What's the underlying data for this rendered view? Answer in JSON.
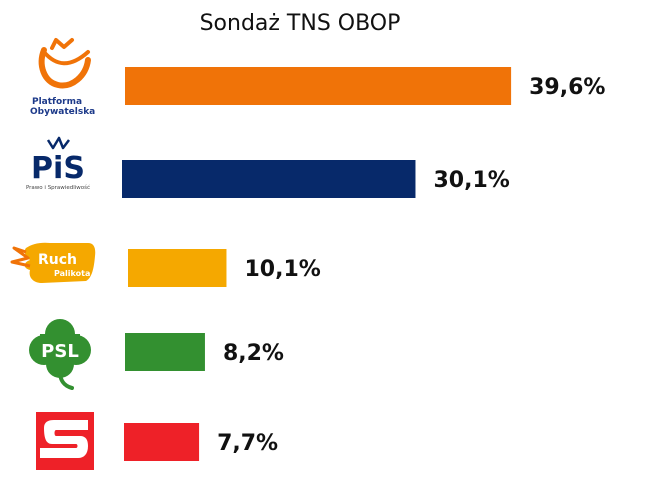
{
  "chart_data": {
    "type": "bar",
    "orientation": "horizontal",
    "title": "Sondaż TNS OBOP",
    "categories": [
      "Platforma Obywatelska",
      "PiS",
      "Ruch Palikota",
      "PSL",
      "SLD"
    ],
    "values": [
      39.6,
      30.1,
      10.1,
      8.2,
      7.7
    ],
    "value_labels": [
      "39,6%",
      "30,1%",
      "10,1%",
      "8,2%",
      "7,7%"
    ],
    "colors": [
      "#f07308",
      "#07296a",
      "#f5a800",
      "#339030",
      "#ee2128"
    ],
    "unit": "%",
    "grid": false,
    "legend": "none"
  },
  "logos": {
    "po": {
      "line1": "Platforma",
      "line2": "Obywatelska"
    },
    "pis": {
      "name": "PiS",
      "subtitle": "Prawo i Sprawiedliwość"
    },
    "ruch": {
      "line1": "Ruch",
      "line2": "Palikota"
    },
    "psl": {
      "name": "PSL"
    }
  }
}
